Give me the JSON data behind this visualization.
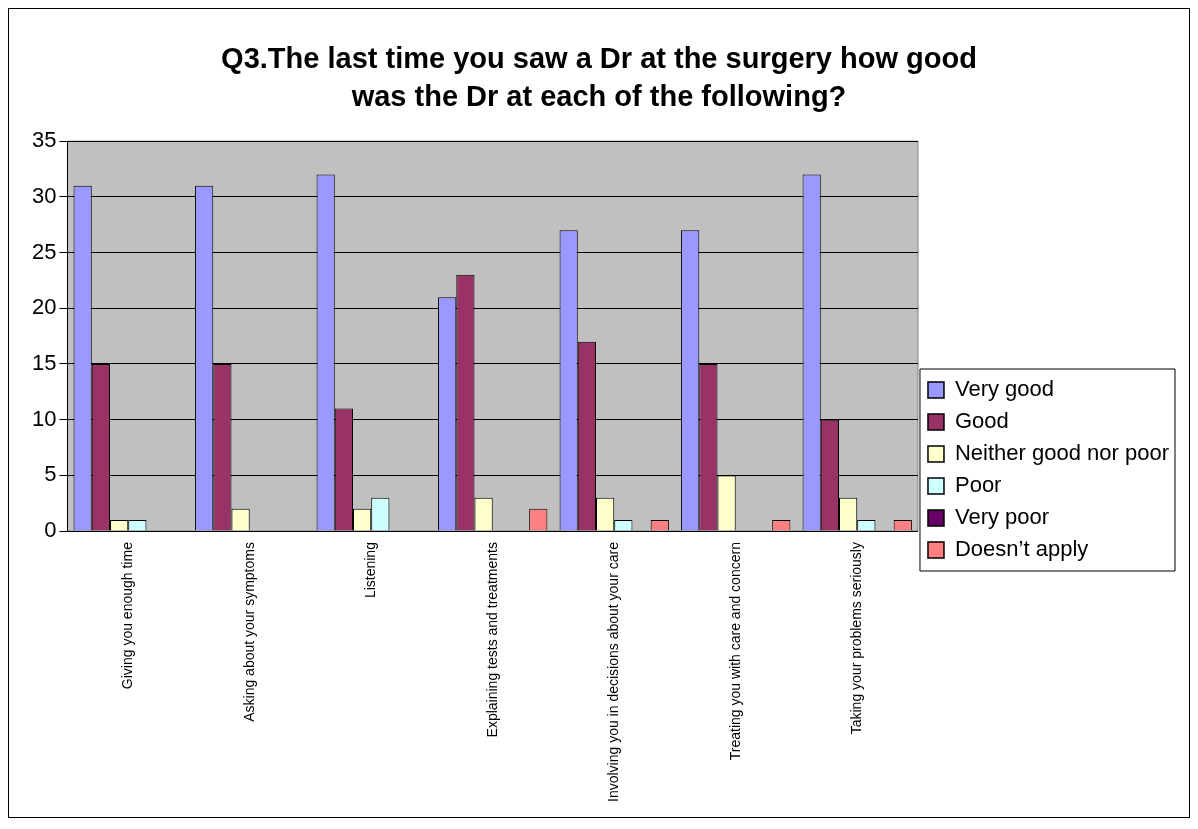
{
  "chart_data": {
    "type": "bar",
    "title": "Q3.The last time you saw a Dr at the surgery how good was the Dr at each of the following?",
    "categories": [
      "Giving you enough time",
      "Asking about your symptoms",
      "Listening",
      "Explaining tests and treatments",
      "Involving you in decisions about your care",
      "Treating you with care and concern",
      "Taking your problems seriously"
    ],
    "series": [
      {
        "name": "Very good",
        "color": "#9999ff",
        "values": [
          31,
          31,
          32,
          21,
          27,
          27,
          32
        ]
      },
      {
        "name": "Good",
        "color": "#993366",
        "values": [
          15,
          15,
          11,
          23,
          17,
          15,
          10
        ]
      },
      {
        "name": "Neither good nor poor",
        "color": "#ffffcc",
        "values": [
          1,
          2,
          2,
          3,
          3,
          5,
          3
        ]
      },
      {
        "name": "Poor",
        "color": "#ccffff",
        "values": [
          1,
          0,
          3,
          0,
          1,
          0,
          1
        ]
      },
      {
        "name": "Very poor",
        "color": "#660066",
        "values": [
          0,
          0,
          0,
          0,
          0,
          0,
          0
        ]
      },
      {
        "name": "Doesn’t apply",
        "color": "#ff8080",
        "values": [
          0,
          0,
          0,
          2,
          1,
          1,
          1
        ]
      }
    ],
    "ylim": [
      0,
      35
    ],
    "yticks": [
      0,
      5,
      10,
      15,
      20,
      25,
      30,
      35
    ],
    "grid": "y",
    "legend": "right"
  }
}
